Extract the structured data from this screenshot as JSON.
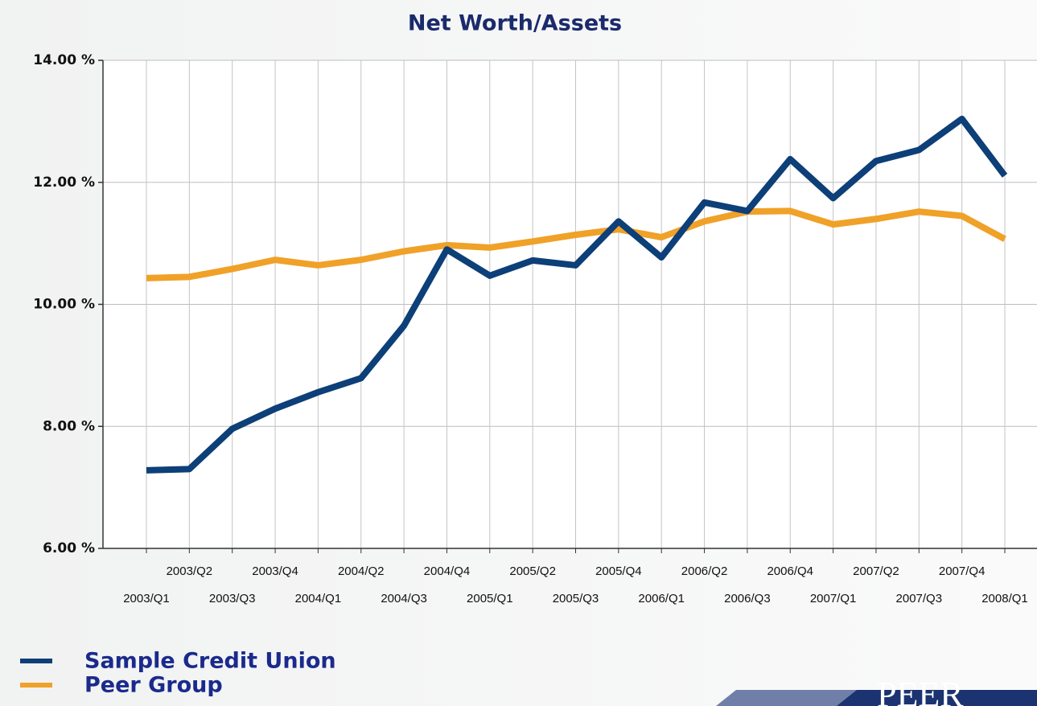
{
  "chart_data": {
    "type": "line",
    "title": "Net Worth/Assets",
    "categories": [
      "2003/Q1",
      "2003/Q2",
      "2003/Q3",
      "2003/Q4",
      "2004/Q1",
      "2004/Q2",
      "2004/Q3",
      "2004/Q4",
      "2005/Q1",
      "2005/Q2",
      "2005/Q3",
      "2005/Q4",
      "2006/Q1",
      "2006/Q2",
      "2006/Q3",
      "2006/Q4",
      "2007/Q1",
      "2007/Q2",
      "2007/Q3",
      "2007/Q4",
      "2008/Q1"
    ],
    "series": [
      {
        "name": "Sample Credit Union",
        "color": "#0d3f78",
        "values": [
          7.28,
          7.3,
          7.96,
          8.29,
          8.56,
          8.79,
          9.65,
          10.9,
          10.47,
          10.72,
          10.64,
          11.36,
          10.77,
          11.67,
          11.53,
          12.38,
          11.74,
          12.35,
          12.53,
          13.04,
          12.11
        ]
      },
      {
        "name": "Peer Group",
        "color": "#f0a128",
        "values": [
          10.43,
          10.45,
          10.58,
          10.73,
          10.64,
          10.73,
          10.87,
          10.97,
          10.93,
          11.03,
          11.14,
          11.23,
          11.1,
          11.36,
          11.52,
          11.53,
          11.31,
          11.4,
          11.52,
          11.45,
          11.07
        ]
      }
    ],
    "ylim": [
      6,
      14
    ],
    "yticks": [
      {
        "value": 6,
        "label": "6.00 %"
      },
      {
        "value": 8,
        "label": "8.00 %"
      },
      {
        "value": 10,
        "label": "10.00 %"
      },
      {
        "value": 12,
        "label": "12.00 %"
      },
      {
        "value": 14,
        "label": "14.00 %"
      }
    ],
    "grid": true
  },
  "logo": {
    "text": "PEER"
  }
}
